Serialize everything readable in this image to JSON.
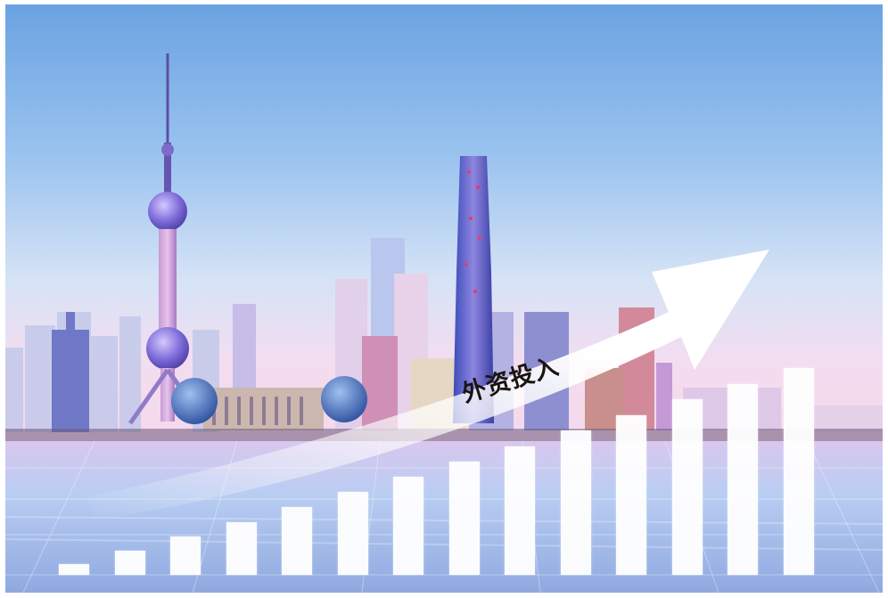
{
  "caption": "外资投入",
  "bars": {
    "count": 14,
    "color": "#ffffff"
  },
  "colors": {
    "sky_top": "#6fa6e3",
    "sky_mid": "#b6d3f1",
    "sky_horizon": "#efdcf1",
    "tower_pink": "#d7a4dc",
    "tower_blue": "#3a49b3",
    "floor_light": "#cfe0f4",
    "accent_red": "#e43c6b"
  }
}
